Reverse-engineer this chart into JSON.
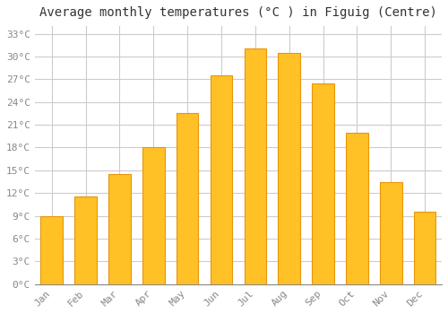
{
  "title": "Average monthly temperatures (°C ) in Figuig (Centre)",
  "months": [
    "Jan",
    "Feb",
    "Mar",
    "Apr",
    "May",
    "Jun",
    "Jul",
    "Aug",
    "Sep",
    "Oct",
    "Nov",
    "Dec"
  ],
  "values": [
    9,
    11.5,
    14.5,
    18,
    22.5,
    27.5,
    31,
    30.5,
    26.5,
    20,
    13.5,
    9.5
  ],
  "bar_color": "#FFC125",
  "bar_edge_color": "#E8960A",
  "background_color": "#FFFFFF",
  "grid_color": "#CCCCCC",
  "ytick_labels": [
    "0°C",
    "3°C",
    "6°C",
    "9°C",
    "12°C",
    "15°C",
    "18°C",
    "21°C",
    "24°C",
    "27°C",
    "30°C",
    "33°C"
  ],
  "ytick_values": [
    0,
    3,
    6,
    9,
    12,
    15,
    18,
    21,
    24,
    27,
    30,
    33
  ],
  "ylim": [
    0,
    34
  ],
  "title_fontsize": 10,
  "tick_fontsize": 8,
  "tick_color": "#888888",
  "font_family": "monospace",
  "bar_width": 0.65
}
